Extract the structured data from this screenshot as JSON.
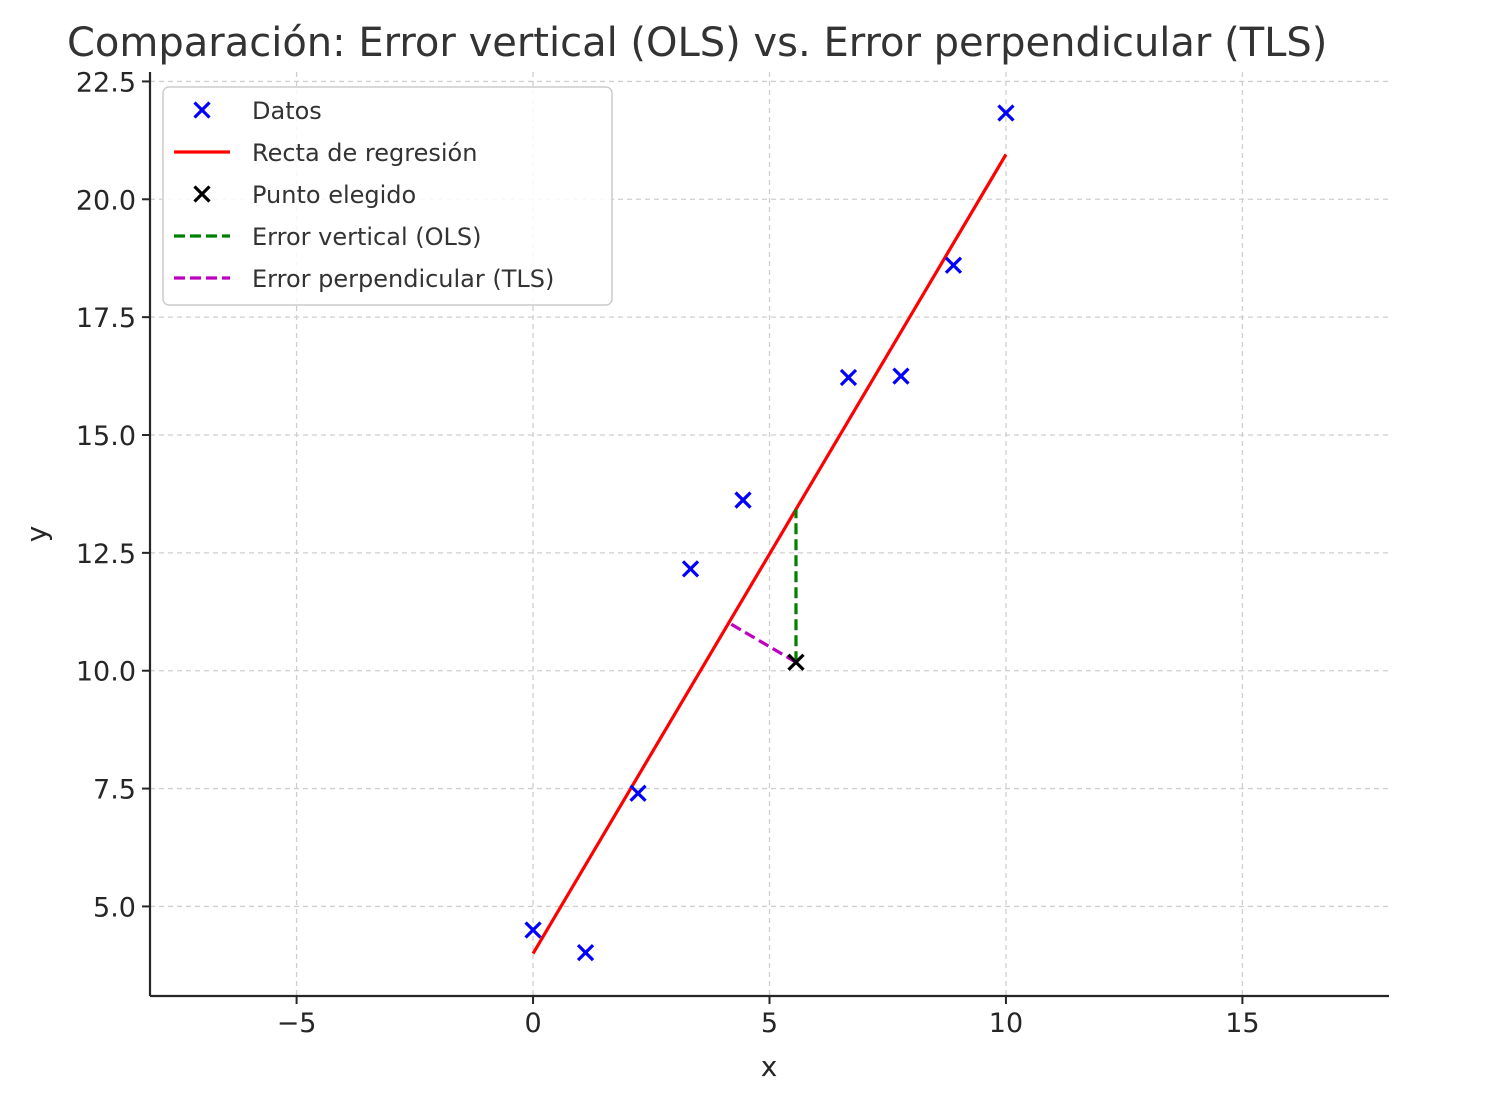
{
  "chart_data": {
    "type": "scatter",
    "title": "Comparación: Error vertical (OLS) vs. Error perpendicular (TLS)",
    "xlabel": "x",
    "ylabel": "y",
    "xlim": [
      -8.1,
      18.1
    ],
    "ylim": [
      3.1,
      22.7
    ],
    "xticks": [
      -5,
      0,
      5,
      10,
      15
    ],
    "xtick_labels": [
      "−5",
      "0",
      "5",
      "10",
      "15"
    ],
    "yticks": [
      5.0,
      7.5,
      10.0,
      12.5,
      15.0,
      17.5,
      20.0,
      22.5
    ],
    "ytick_labels": [
      "5.0",
      "7.5",
      "10.0",
      "12.5",
      "15.0",
      "17.5",
      "20.0",
      "22.5"
    ],
    "grid": true,
    "legend_position": "top-left",
    "series": [
      {
        "name": "Datos",
        "kind": "scatter",
        "marker": "x",
        "color": "#0000ff",
        "points": [
          {
            "x": 0.0,
            "y": 4.5
          },
          {
            "x": 1.11,
            "y": 4.02
          },
          {
            "x": 2.22,
            "y": 7.4
          },
          {
            "x": 3.33,
            "y": 12.16
          },
          {
            "x": 4.44,
            "y": 13.62
          },
          {
            "x": 6.67,
            "y": 16.22
          },
          {
            "x": 7.78,
            "y": 16.25
          },
          {
            "x": 8.89,
            "y": 18.6
          },
          {
            "x": 10.0,
            "y": 21.83
          }
        ]
      },
      {
        "name": "Recta de regresión",
        "kind": "line",
        "color": "#ff0000",
        "dash": "solid",
        "points": [
          {
            "x": 0.0,
            "y": 4.0
          },
          {
            "x": 10.0,
            "y": 20.95
          }
        ]
      },
      {
        "name": "Punto elegido",
        "kind": "scatter",
        "marker": "x",
        "color": "#000000",
        "points": [
          {
            "x": 5.56,
            "y": 10.18
          }
        ]
      },
      {
        "name": "Error vertical (OLS)",
        "kind": "line",
        "color": "#008000",
        "dash": "dashed",
        "points": [
          {
            "x": 5.56,
            "y": 10.18
          },
          {
            "x": 5.56,
            "y": 13.42
          }
        ]
      },
      {
        "name": "Error perpendicular (TLS)",
        "kind": "line",
        "color": "#bf00bf",
        "dash": "dashed",
        "points": [
          {
            "x": 5.56,
            "y": 10.18
          },
          {
            "x": 4.1,
            "y": 11.04
          }
        ]
      }
    ]
  }
}
